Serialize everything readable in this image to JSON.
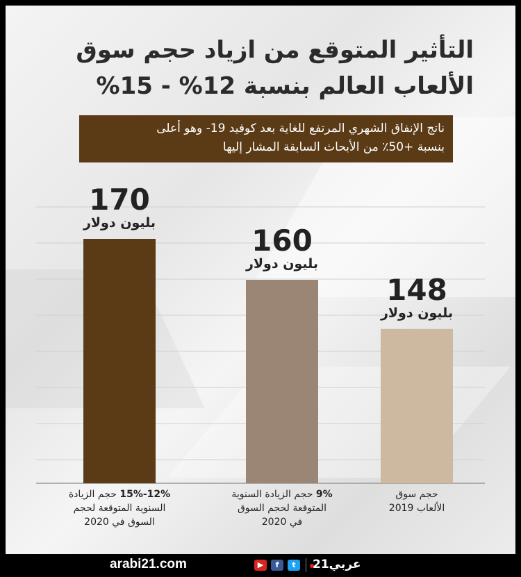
{
  "title_line1": "التأثير المتوقع من ازياد حجم سوق",
  "title_line2": "الألعاب العالم بنسبة 12% - 15%",
  "subtitle_line1": "ناتج الإنفاق الشهري المرتفع للغاية بعد كوفيد 19- وهو أعلى",
  "subtitle_line2": "بنسبة +50٪ من الأبحاث السابقة المشار إليها",
  "colors": {
    "bar1": "#5b3a16",
    "bar2": "#9b8574",
    "bar3": "#cdb8a0",
    "box": "#5b3a16"
  },
  "chart_data": {
    "type": "bar",
    "unit": "بليون دولار",
    "ylim": [
      0,
      180
    ],
    "bars": [
      {
        "value": 170,
        "value_label": "170",
        "unit": "بليون دولار",
        "cat_bold": "12%-15%",
        "cat_rest": " حجم الزيادة",
        "cat_line2": "السنوية المتوقعة لحجم",
        "cat_line3": "السوق في 2020",
        "color": "#5b3a16"
      },
      {
        "value": 160,
        "value_label": "160",
        "unit": "بليون دولار",
        "cat_bold": "9%",
        "cat_rest": " حجم الزيادة السنوية",
        "cat_line2": "المتوقعة لحجم السوق",
        "cat_line3": "في 2020",
        "color": "#9b8574"
      },
      {
        "value": 148,
        "value_label": "148",
        "unit": "بليون دولار",
        "cat_bold": "",
        "cat_rest": "حجم سوق",
        "cat_line2": "الألعاب 2019",
        "cat_line3": "",
        "color": "#cdb8a0"
      }
    ]
  },
  "footer": {
    "brand": "arabi21.com",
    "yt": "▶",
    "fb": "f",
    "tw": "t",
    "logo": "عربي21"
  }
}
